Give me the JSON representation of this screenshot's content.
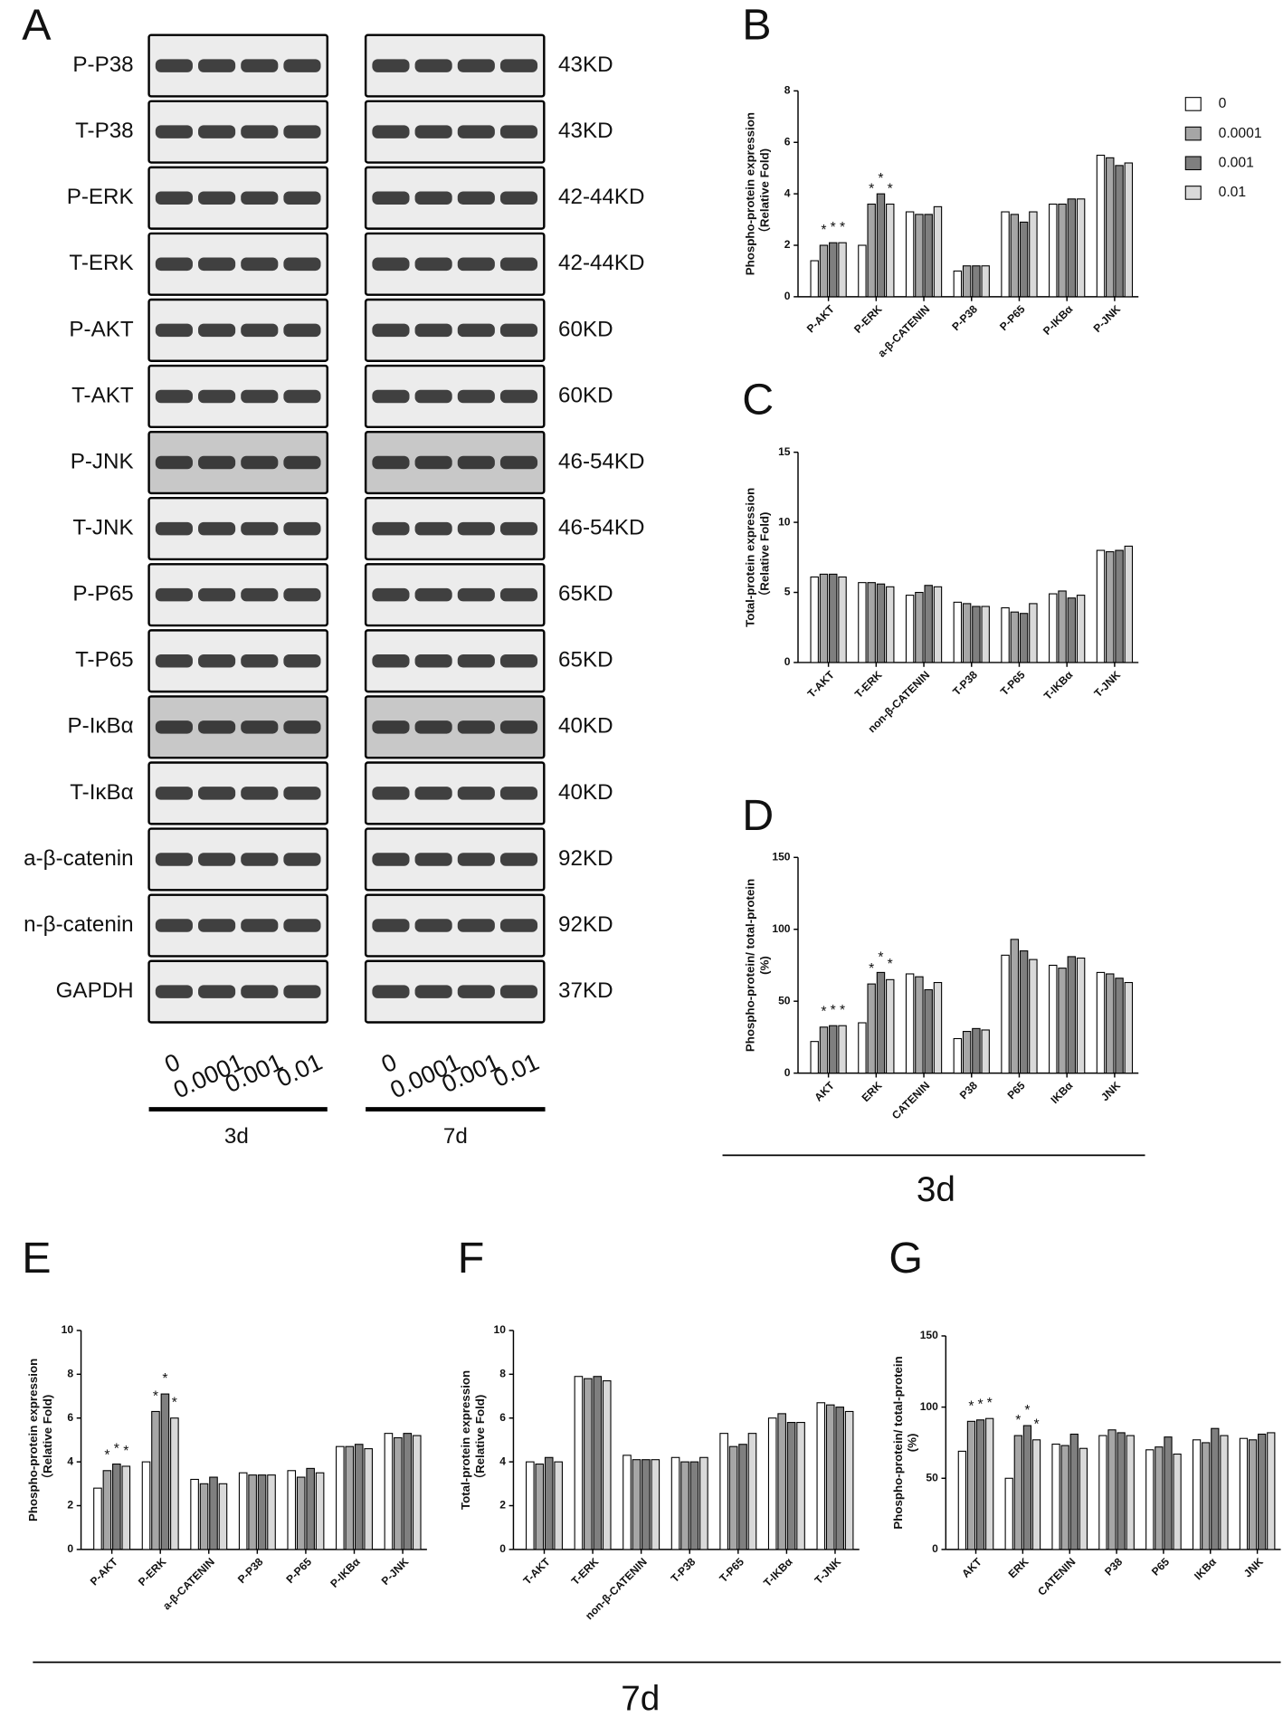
{
  "panel_labels": [
    "A",
    "B",
    "C",
    "D",
    "E",
    "F",
    "G"
  ],
  "group_labels": [
    "3d",
    "7d"
  ],
  "blot": {
    "groups": [
      "3d",
      "7d"
    ],
    "doses": [
      "0",
      "0.0001",
      "0.001",
      "0.01"
    ],
    "rows": [
      {
        "label": "P-P38",
        "size": "43KD"
      },
      {
        "label": "T-P38",
        "size": "43KD"
      },
      {
        "label": "P-ERK",
        "size": "42-44KD"
      },
      {
        "label": "T-ERK",
        "size": "42-44KD"
      },
      {
        "label": "P-AKT",
        "size": "60KD"
      },
      {
        "label": "T-AKT",
        "size": "60KD"
      },
      {
        "label": "P-JNK",
        "size": "46-54KD"
      },
      {
        "label": "T-JNK",
        "size": "46-54KD"
      },
      {
        "label": "P-P65",
        "size": "65KD"
      },
      {
        "label": "T-P65",
        "size": "65KD"
      },
      {
        "label": "P-IκBα",
        "size": "40KD"
      },
      {
        "label": "T-IκBα",
        "size": "40KD"
      },
      {
        "label": "a-β-catenin",
        "size": "92KD"
      },
      {
        "label": "n-β-catenin",
        "size": "92KD"
      },
      {
        "label": "GAPDH",
        "size": "37KD"
      }
    ]
  },
  "chart_data": [
    {
      "type": "bar",
      "ylabel": [
        "Phospho-protein expression",
        "（Relative Fold)"
      ],
      "categories": [
        "P-AKT",
        "P-ERK",
        "a-β-CATENIN",
        "P-P38",
        "P-P65",
        "P-IKBα",
        "P-JNK"
      ],
      "ylim": [
        0,
        8
      ],
      "yticks": [
        0,
        2,
        4,
        6,
        8
      ],
      "legend": true,
      "series": [
        {
          "name": "0",
          "color": "#ffffff",
          "values": [
            1.4,
            2.0,
            3.3,
            1.0,
            3.3,
            3.6,
            5.5
          ]
        },
        {
          "name": "0.0001",
          "color": "#a6a6a6",
          "values": [
            2.0,
            3.6,
            3.2,
            1.2,
            3.2,
            3.6,
            5.4
          ]
        },
        {
          "name": "0.001",
          "color": "#7f7f7f",
          "values": [
            2.1,
            4.0,
            3.2,
            1.2,
            2.9,
            3.8,
            5.1
          ]
        },
        {
          "name": "0.01",
          "color": "#d9d9d9",
          "values": [
            2.1,
            3.6,
            3.5,
            1.2,
            3.3,
            3.8,
            5.2
          ]
        }
      ],
      "annotations": [
        {
          "text": "*",
          "category": 0,
          "series": 1
        },
        {
          "text": "*",
          "category": 0,
          "series": 2
        },
        {
          "text": "*",
          "category": 0,
          "series": 3
        },
        {
          "text": "*",
          "category": 1,
          "series": 1
        },
        {
          "text": "*",
          "category": 1,
          "series": 2
        },
        {
          "text": "*",
          "category": 1,
          "series": 3
        }
      ]
    },
    {
      "type": "bar",
      "ylabel": [
        "Total-protein expression",
        "（Relative Fold)"
      ],
      "categories": [
        "T-AKT",
        "T-ERK",
        "non-β-CATENIN",
        "T-P38",
        "T-P65",
        "T-IKBα",
        "T-JNK"
      ],
      "ylim": [
        0,
        15
      ],
      "yticks": [
        0,
        5,
        10,
        15
      ],
      "legend": false,
      "series": [
        {
          "name": "0",
          "color": "#ffffff",
          "values": [
            6.1,
            5.7,
            4.8,
            4.3,
            3.9,
            4.9,
            8.0
          ]
        },
        {
          "name": "0.0001",
          "color": "#a6a6a6",
          "values": [
            6.3,
            5.7,
            5.0,
            4.2,
            3.6,
            5.1,
            7.9
          ]
        },
        {
          "name": "0.001",
          "color": "#7f7f7f",
          "values": [
            6.3,
            5.6,
            5.5,
            4.0,
            3.5,
            4.6,
            8.0
          ]
        },
        {
          "name": "0.01",
          "color": "#d9d9d9",
          "values": [
            6.1,
            5.4,
            5.4,
            4.0,
            4.2,
            4.8,
            8.3
          ]
        }
      ],
      "annotations": []
    },
    {
      "type": "bar",
      "ylabel": [
        "Phospho-protein/ total-protein",
        "(%)"
      ],
      "categories": [
        "AKT",
        "ERK",
        "CATENIN",
        "P38",
        "P65",
        "IKBα",
        "JNK"
      ],
      "ylim": [
        0,
        150
      ],
      "yticks": [
        0,
        50,
        100,
        150
      ],
      "legend": false,
      "series": [
        {
          "name": "0",
          "color": "#ffffff",
          "values": [
            22,
            35,
            69,
            24,
            82,
            75,
            70
          ]
        },
        {
          "name": "0.0001",
          "color": "#a6a6a6",
          "values": [
            32,
            62,
            67,
            29,
            93,
            73,
            69
          ]
        },
        {
          "name": "0.001",
          "color": "#7f7f7f",
          "values": [
            33,
            70,
            58,
            31,
            85,
            81,
            66
          ]
        },
        {
          "name": "0.01",
          "color": "#d9d9d9",
          "values": [
            33,
            65,
            63,
            30,
            79,
            80,
            63
          ]
        }
      ],
      "annotations": [
        {
          "text": "*",
          "category": 0,
          "series": 1
        },
        {
          "text": "*",
          "category": 0,
          "series": 2
        },
        {
          "text": "*",
          "category": 0,
          "series": 3
        },
        {
          "text": "*",
          "category": 1,
          "series": 1
        },
        {
          "text": "*",
          "category": 1,
          "series": 2
        },
        {
          "text": "*",
          "category": 1,
          "series": 3
        }
      ]
    },
    {
      "type": "bar",
      "ylabel": [
        "Phospho-protein expression",
        "（Relative Fold)"
      ],
      "categories": [
        "P-AKT",
        "P-ERK",
        "a-β-CATENIN",
        "P-P38",
        "P-P65",
        "P-IKBα",
        "P-JNK"
      ],
      "ylim": [
        0,
        10
      ],
      "yticks": [
        0,
        2,
        4,
        6,
        8,
        10
      ],
      "legend": false,
      "series": [
        {
          "name": "0",
          "color": "#ffffff",
          "values": [
            2.8,
            4.0,
            3.2,
            3.5,
            3.6,
            4.7,
            5.3
          ]
        },
        {
          "name": "0.0001",
          "color": "#a6a6a6",
          "values": [
            3.6,
            6.3,
            3.0,
            3.4,
            3.3,
            4.7,
            5.1
          ]
        },
        {
          "name": "0.001",
          "color": "#7f7f7f",
          "values": [
            3.9,
            7.1,
            3.3,
            3.4,
            3.7,
            4.8,
            5.3
          ]
        },
        {
          "name": "0.01",
          "color": "#d9d9d9",
          "values": [
            3.8,
            6.0,
            3.0,
            3.4,
            3.5,
            4.6,
            5.2
          ]
        }
      ],
      "annotations": [
        {
          "text": "*",
          "category": 0,
          "series": 1
        },
        {
          "text": "*",
          "category": 0,
          "series": 2
        },
        {
          "text": "*",
          "category": 0,
          "series": 3
        },
        {
          "text": "*",
          "category": 1,
          "series": 1
        },
        {
          "text": "*",
          "category": 1,
          "series": 2
        },
        {
          "text": "*",
          "category": 1,
          "series": 3
        }
      ]
    },
    {
      "type": "bar",
      "ylabel": [
        "Total-protein expression",
        "（Relative Fold)"
      ],
      "categories": [
        "T-AKT",
        "T-ERK",
        "non-β-CATENIN",
        "T-P38",
        "T-P65",
        "T-IKBα",
        "T-JNK"
      ],
      "ylim": [
        0,
        10
      ],
      "yticks": [
        0,
        2,
        4,
        6,
        8,
        10
      ],
      "legend": false,
      "series": [
        {
          "name": "0",
          "color": "#ffffff",
          "values": [
            4.0,
            7.9,
            4.3,
            4.2,
            5.3,
            6.0,
            6.7
          ]
        },
        {
          "name": "0.0001",
          "color": "#a6a6a6",
          "values": [
            3.9,
            7.8,
            4.1,
            4.0,
            4.7,
            6.2,
            6.6
          ]
        },
        {
          "name": "0.001",
          "color": "#7f7f7f",
          "values": [
            4.2,
            7.9,
            4.1,
            4.0,
            4.8,
            5.8,
            6.5
          ]
        },
        {
          "name": "0.01",
          "color": "#d9d9d9",
          "values": [
            4.0,
            7.7,
            4.1,
            4.2,
            5.3,
            5.8,
            6.3
          ]
        }
      ],
      "annotations": []
    },
    {
      "type": "bar",
      "ylabel": [
        "Phospho-protein/ total-protein",
        "(%)"
      ],
      "categories": [
        "AKT",
        "ERK",
        "CATENIN",
        "P38",
        "P65",
        "IKBα",
        "JNK"
      ],
      "ylim": [
        0,
        150
      ],
      "yticks": [
        0,
        50,
        100,
        150
      ],
      "legend": false,
      "series": [
        {
          "name": "0",
          "color": "#ffffff",
          "values": [
            69,
            50,
            74,
            80,
            70,
            77,
            78
          ]
        },
        {
          "name": "0.0001",
          "color": "#a6a6a6",
          "values": [
            90,
            80,
            73,
            84,
            72,
            75,
            77
          ]
        },
        {
          "name": "0.001",
          "color": "#7f7f7f",
          "values": [
            91,
            87,
            81,
            82,
            79,
            85,
            81
          ]
        },
        {
          "name": "0.01",
          "color": "#d9d9d9",
          "values": [
            92,
            77,
            71,
            80,
            67,
            80,
            82
          ]
        }
      ],
      "annotations": [
        {
          "text": "*",
          "category": 0,
          "series": 1
        },
        {
          "text": "*",
          "category": 0,
          "series": 2
        },
        {
          "text": "*",
          "category": 0,
          "series": 3
        },
        {
          "text": "*",
          "category": 1,
          "series": 1
        },
        {
          "text": "*",
          "category": 1,
          "series": 2
        },
        {
          "text": "*",
          "category": 1,
          "series": 3
        }
      ]
    }
  ]
}
